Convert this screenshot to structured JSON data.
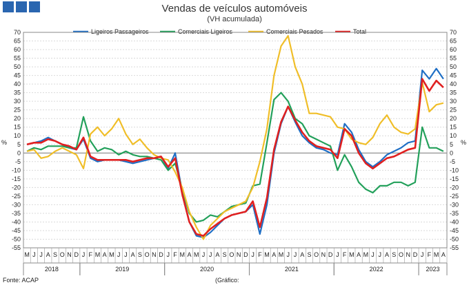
{
  "header": {
    "logo_blocks": 3,
    "brand_color": "#2a66b0"
  },
  "footer": {
    "source": "Fonte: ACAP",
    "chart_label": "(Gráfico:"
  },
  "chart_data": {
    "type": "line",
    "title": "Vendas de veículos automóveis",
    "subtitle": "(VH acumulada)",
    "ylabel_left": "%",
    "ylabel_right": "%",
    "ylim": [
      -55,
      70
    ],
    "ytick_step": 5,
    "grid": true,
    "legend_position": "top",
    "x_months": [
      "M",
      "J",
      "J",
      "A",
      "S",
      "O",
      "N",
      "D",
      "J",
      "F",
      "M",
      "A",
      "M",
      "J",
      "J",
      "A",
      "S",
      "O",
      "N",
      "D",
      "J",
      "F",
      "M",
      "A",
      "M",
      "J",
      "J",
      "A",
      "S",
      "O",
      "N",
      "D",
      "J",
      "F",
      "M",
      "A",
      "M",
      "J",
      "J",
      "A",
      "S",
      "O",
      "N",
      "D",
      "J",
      "F",
      "M",
      "A",
      "M",
      "J",
      "J",
      "A",
      "S",
      "O",
      "N",
      "D",
      "J",
      "F",
      "M",
      "A"
    ],
    "years": [
      {
        "label": "2018",
        "start": 0,
        "end": 8
      },
      {
        "label": "2019",
        "start": 8,
        "end": 20
      },
      {
        "label": "2020",
        "start": 20,
        "end": 32
      },
      {
        "label": "2021",
        "start": 32,
        "end": 44
      },
      {
        "label": "2022",
        "start": 44,
        "end": 56
      },
      {
        "label": "2023",
        "start": 56,
        "end": 60
      }
    ],
    "series": [
      {
        "name": "Ligeiros Passageiros",
        "color": "#1f6fc5",
        "values": [
          5,
          6,
          7,
          9,
          7,
          5,
          3,
          2,
          8,
          -3,
          -5,
          -4,
          -4,
          -4,
          -5,
          -6,
          -5,
          -4,
          -3,
          -2,
          -9,
          0,
          -23,
          -40,
          -48,
          -49,
          -46,
          -42,
          -38,
          -36,
          -35,
          -34,
          -30,
          -47,
          -30,
          0,
          17,
          27,
          18,
          10,
          6,
          3,
          2,
          0,
          -1,
          17,
          12,
          2,
          -5,
          -8,
          -5,
          -1,
          1,
          3,
          6,
          7,
          48,
          43,
          49,
          43
        ]
      },
      {
        "name": "Comerciais Ligeiros",
        "color": "#22a05a",
        "values": [
          1,
          3,
          2,
          4,
          4,
          4,
          3,
          3,
          21,
          7,
          1,
          3,
          2,
          -1,
          1,
          -1,
          -2,
          -2,
          -3,
          -4,
          -10,
          -6,
          -21,
          -35,
          -40,
          -39,
          -36,
          -37,
          -34,
          -31,
          -30,
          -29,
          -19,
          -18,
          6,
          31,
          35,
          30,
          20,
          17,
          10,
          8,
          6,
          4,
          -10,
          -1,
          -8,
          -17,
          -21,
          -23,
          -19,
          -19,
          -17,
          -17,
          -19,
          -17,
          15,
          3,
          3,
          1
        ]
      },
      {
        "name": "Comerciais Pesados",
        "color": "#f0be28",
        "values": [
          1,
          2,
          -3,
          -2,
          1,
          3,
          1,
          -1,
          -9,
          11,
          15,
          10,
          14,
          20,
          11,
          5,
          8,
          3,
          -1,
          -3,
          -4,
          -11,
          -20,
          -34,
          -43,
          -50,
          -42,
          -38,
          -34,
          -32,
          -30,
          -28,
          -20,
          -5,
          14,
          45,
          62,
          68,
          50,
          40,
          23,
          23,
          22,
          21,
          15,
          14,
          8,
          6,
          5,
          9,
          17,
          22,
          15,
          12,
          11,
          14,
          41,
          24,
          28,
          29
        ]
      },
      {
        "name": "Total",
        "color": "#e02020",
        "values": [
          5,
          6,
          6,
          8,
          7,
          5,
          4,
          2,
          9,
          -2,
          -4,
          -4,
          -4,
          -4,
          -4,
          -5,
          -4,
          -3,
          -3,
          -2,
          -8,
          -3,
          -24,
          -40,
          -47,
          -48,
          -44,
          -41,
          -38,
          -36,
          -35,
          -34,
          -28,
          -43,
          -26,
          2,
          18,
          27,
          19,
          12,
          7,
          4,
          3,
          2,
          -3,
          14,
          10,
          0,
          -6,
          -9,
          -6,
          -3,
          -2,
          0,
          2,
          3,
          43,
          36,
          42,
          38
        ]
      }
    ]
  }
}
